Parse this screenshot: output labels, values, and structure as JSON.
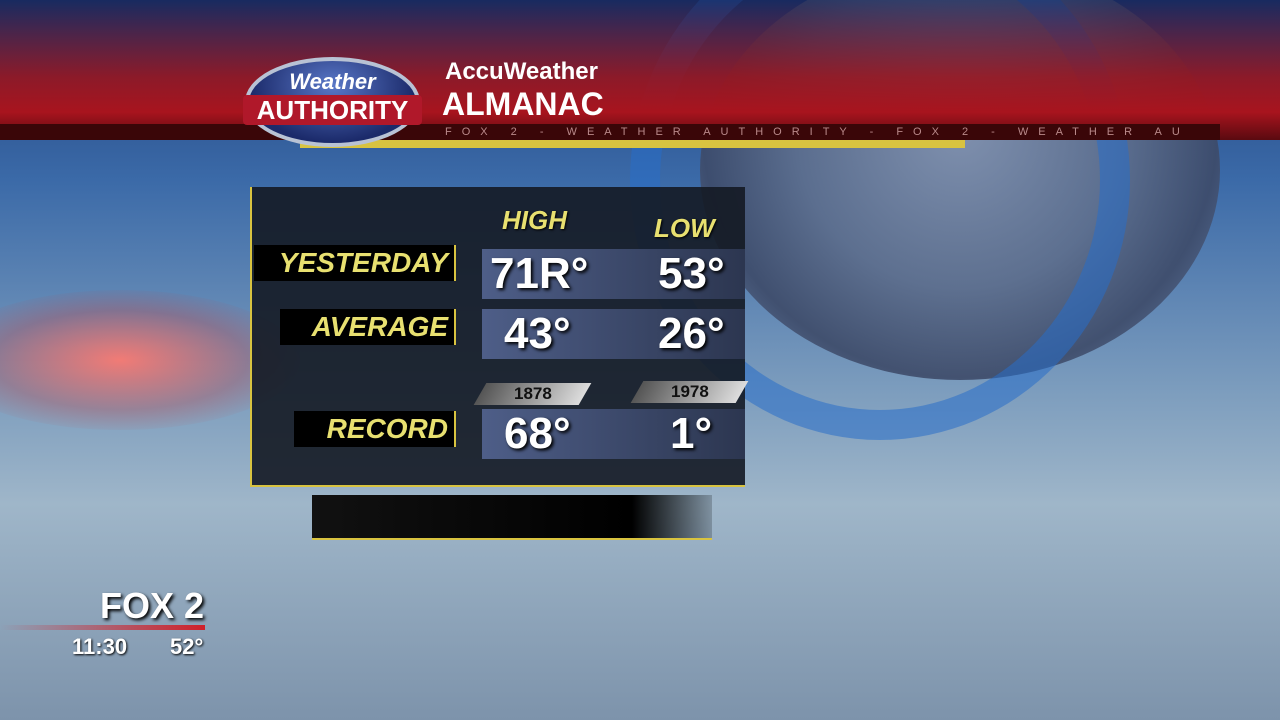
{
  "branding": {
    "logo_top": "Weather",
    "logo_bottom": "AUTHORITY",
    "title_line1": "AccuWeather",
    "title_line2": "ALMANAC",
    "ticker": "FOX 2 - WEATHER AUTHORITY - FOX 2 - WEATHER AU",
    "accent_red": "#a8141e",
    "accent_yellow": "#d8c340"
  },
  "almanac": {
    "col_high": "HIGH",
    "col_low": "LOW",
    "rows": [
      {
        "label": "YESTERDAY",
        "high": "71R°",
        "low": "53°"
      },
      {
        "label": "AVERAGE",
        "high": "43°",
        "low": "26°"
      },
      {
        "label": "RECORD",
        "high": "68°",
        "low": "1°",
        "high_year": "1878",
        "low_year": "1978"
      }
    ]
  },
  "bug": {
    "station": "FOX 2",
    "time": "11:30",
    "temperature": "52°"
  }
}
